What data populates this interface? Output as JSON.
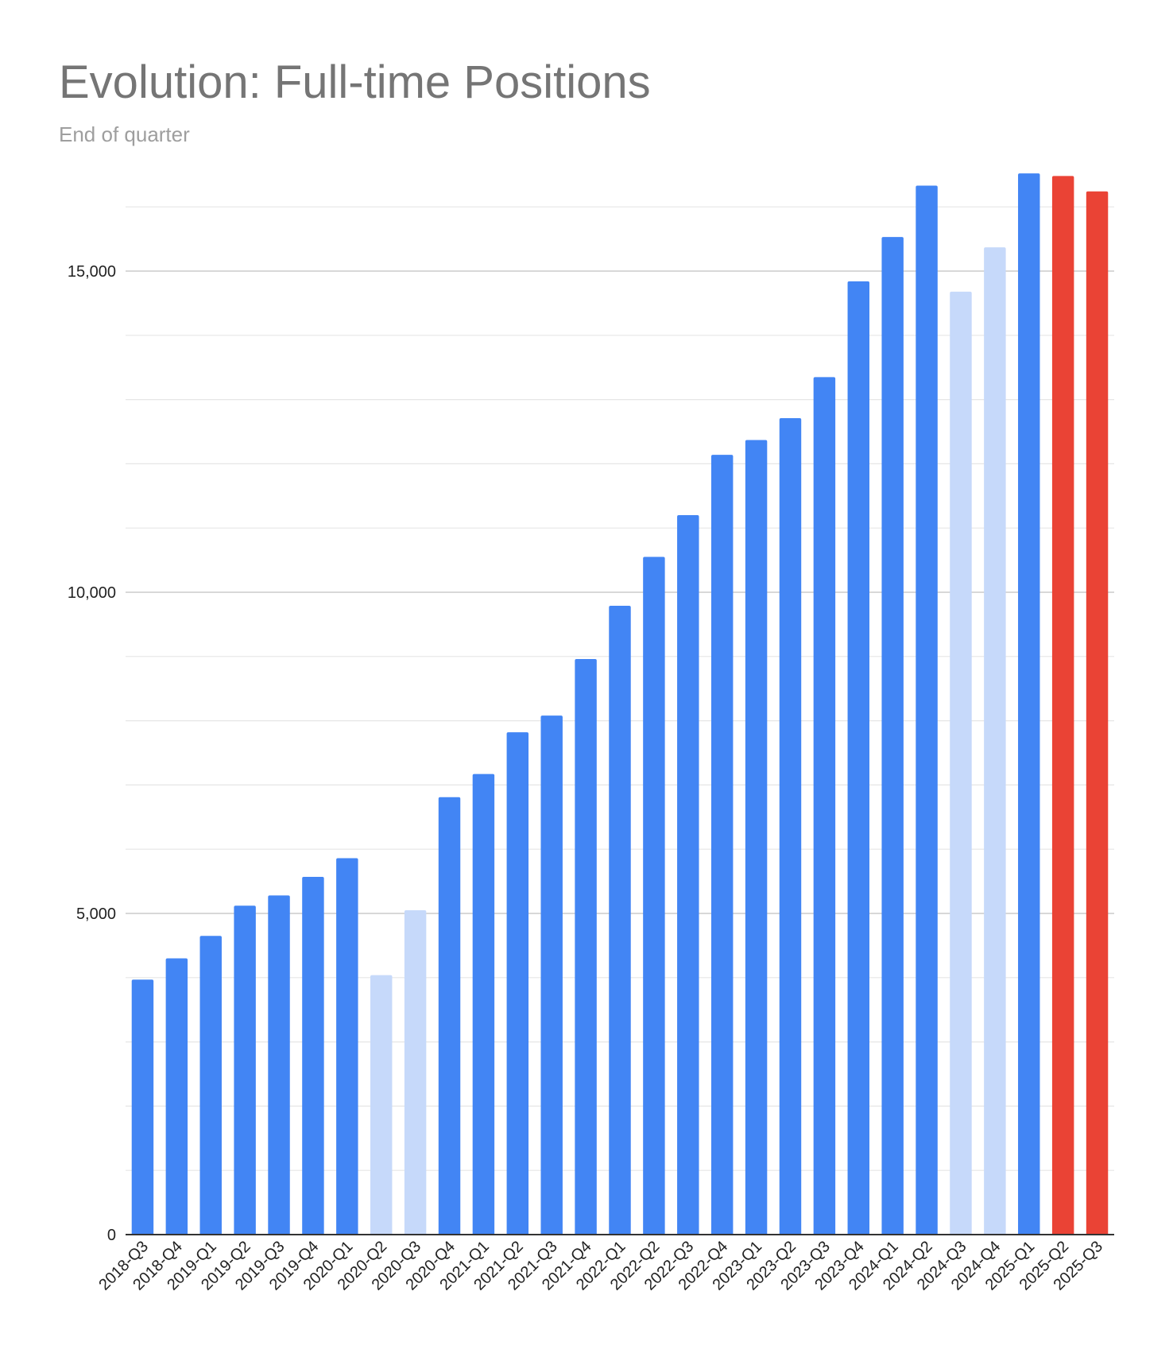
{
  "chart_data": {
    "type": "bar",
    "title": "Evolution: Full-time Positions",
    "subtitle": "End of quarter",
    "xlabel": "",
    "ylabel": "",
    "ylim": [
      0,
      16250
    ],
    "y_ticks": [
      0,
      5000,
      10000,
      15000
    ],
    "y_tick_labels": [
      "0",
      "5,000",
      "10,000",
      "15,000"
    ],
    "minor_gridline_step": 1000,
    "grid": true,
    "legend": "none",
    "categories": [
      "2018-Q3",
      "2018-Q4",
      "2019-Q1",
      "2019-Q2",
      "2019-Q3",
      "2019-Q4",
      "2020-Q1",
      "2020-Q2",
      "2020-Q3",
      "2020-Q4",
      "2021-Q1",
      "2021-Q2",
      "2021-Q3",
      "2021-Q4",
      "2022-Q1",
      "2022-Q2",
      "2022-Q3",
      "2022-Q4",
      "2023-Q1",
      "2023-Q2",
      "2023-Q3",
      "2023-Q4",
      "2024-Q1",
      "2024-Q2",
      "2024-Q3",
      "2024-Q4",
      "2025-Q1",
      "2025-Q2",
      "2025-Q3"
    ],
    "values": [
      3970,
      4300,
      4650,
      5120,
      5280,
      5570,
      5860,
      4040,
      5050,
      6810,
      7170,
      7820,
      8080,
      8960,
      9790,
      10550,
      11200,
      12140,
      12370,
      12710,
      13350,
      14840,
      15530,
      16330,
      14680,
      15370,
      16520,
      16480,
      16240
    ],
    "bar_colors": [
      "#4285F4",
      "#4285F4",
      "#4285F4",
      "#4285F4",
      "#4285F4",
      "#4285F4",
      "#4285F4",
      "#C6D9FA",
      "#C6D9FA",
      "#4285F4",
      "#4285F4",
      "#4285F4",
      "#4285F4",
      "#4285F4",
      "#4285F4",
      "#4285F4",
      "#4285F4",
      "#4285F4",
      "#4285F4",
      "#4285F4",
      "#4285F4",
      "#4285F4",
      "#4285F4",
      "#4285F4",
      "#C6D9FA",
      "#C6D9FA",
      "#4285F4",
      "#EA4335",
      "#EA4335"
    ]
  }
}
